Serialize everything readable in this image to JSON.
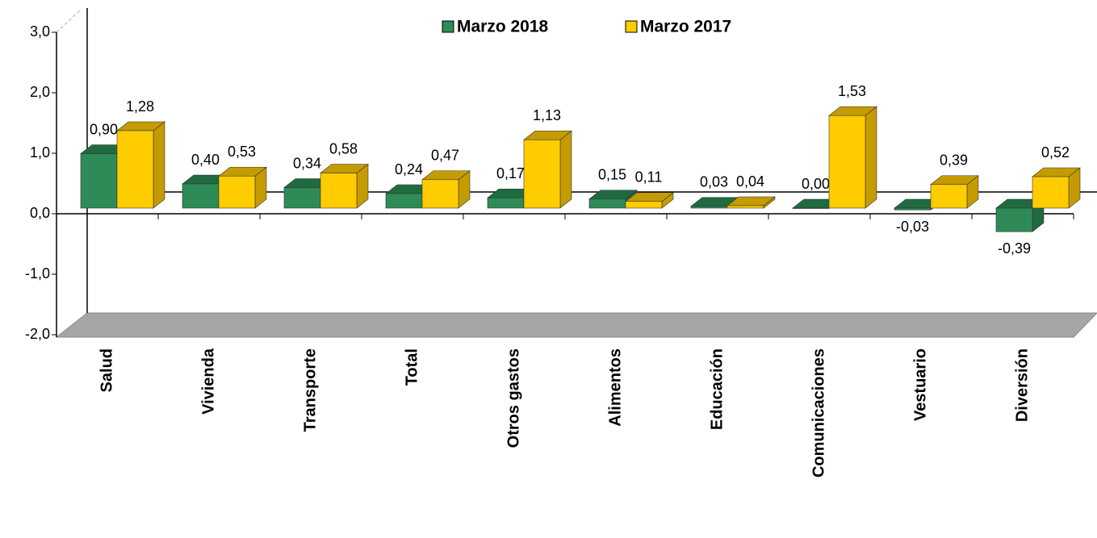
{
  "chart_data": {
    "type": "bar3d",
    "categories": [
      "Salud",
      "Vivienda",
      "Transporte",
      "Total",
      "Otros gastos",
      "Alimentos",
      "Educación",
      "Comunicaciones",
      "Vestuario",
      "Diversión"
    ],
    "series": [
      {
        "name": "Marzo 2018",
        "color": "#2e8b57",
        "side": "#1f6b40",
        "values": [
          0.9,
          0.4,
          0.34,
          0.24,
          0.17,
          0.15,
          0.03,
          0.0,
          -0.03,
          -0.39
        ],
        "value_labels": [
          "0,90",
          "0,40",
          "0,34",
          "0,24",
          "0,17",
          "0,15",
          "0,03",
          "0,00",
          "-0,03",
          "-0,39"
        ]
      },
      {
        "name": "Marzo 2017",
        "color": "#ffcc00",
        "side": "#c49b00",
        "values": [
          1.28,
          0.53,
          0.58,
          0.47,
          1.13,
          0.11,
          0.04,
          1.53,
          0.39,
          0.52
        ],
        "value_labels": [
          "1,28",
          "0,53",
          "0,58",
          "0,47",
          "1,13",
          "0,11",
          "0,04",
          "1,53",
          "0,39",
          "0,52"
        ]
      }
    ],
    "ylim": [
      -2,
      3
    ],
    "yticks": [
      {
        "value": 3,
        "label": "3,0"
      },
      {
        "value": 2,
        "label": "2,0"
      },
      {
        "value": 1,
        "label": "1,0"
      },
      {
        "value": 0,
        "label": "0,0"
      },
      {
        "value": -1,
        "label": "-1,0"
      },
      {
        "value": -2,
        "label": "-2,0"
      }
    ],
    "legend": "top"
  }
}
